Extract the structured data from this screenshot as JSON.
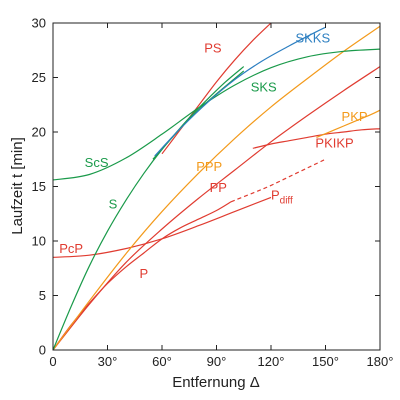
{
  "chart_data": {
    "type": "line",
    "title": "",
    "xlabel": "Entfernung Δ",
    "ylabel": "Laufzeit t [min]",
    "xlim": [
      0,
      180
    ],
    "ylim": [
      0,
      30
    ],
    "x_ticks": [
      "0",
      "30°",
      "60°",
      "90°",
      "120°",
      "150°",
      "180°"
    ],
    "x_tick_values": [
      0,
      30,
      60,
      90,
      120,
      150,
      180
    ],
    "y_ticks": [
      "0",
      "5",
      "10",
      "15",
      "20",
      "25",
      "30"
    ],
    "y_tick_values": [
      0,
      5,
      10,
      15,
      20,
      25,
      30
    ],
    "grid": false,
    "legend": "none",
    "colors": {
      "red": "#e03c31",
      "green": "#1a9a4a",
      "orange": "#f39a1b",
      "blue": "#2d7fc1"
    },
    "series": [
      {
        "name": "P",
        "color": "#e03c31",
        "x": [
          0,
          10,
          20,
          30,
          40,
          50,
          60,
          70,
          80,
          90,
          98
        ],
        "y": [
          0,
          2.3,
          4.3,
          6.1,
          7.6,
          8.9,
          10.2,
          11.2,
          12.0,
          12.8,
          13.6
        ]
      },
      {
        "name": "Pdiff",
        "color": "#e03c31",
        "dashed": true,
        "x": [
          98,
          110,
          120,
          130,
          140,
          150
        ],
        "y": [
          13.6,
          14.4,
          15.1,
          15.9,
          16.7,
          17.5
        ]
      },
      {
        "name": "PcP",
        "color": "#e03c31",
        "x": [
          0,
          20,
          40,
          60,
          80,
          100,
          120
        ],
        "y": [
          8.5,
          8.7,
          9.3,
          10.2,
          11.4,
          12.7,
          14.0
        ]
      },
      {
        "name": "PP",
        "color": "#e03c31",
        "x": [
          0,
          20,
          40,
          60,
          80,
          100,
          120,
          140,
          160,
          180
        ],
        "y": [
          0,
          4.2,
          8.0,
          11.1,
          13.9,
          16.5,
          19.1,
          21.5,
          23.8,
          26.0
        ]
      },
      {
        "name": "PKIKP",
        "color": "#e03c31",
        "x": [
          110,
          120,
          130,
          140,
          150,
          160,
          170,
          180
        ],
        "y": [
          18.5,
          18.9,
          19.2,
          19.5,
          19.8,
          20.0,
          20.2,
          20.3
        ]
      },
      {
        "name": "PS",
        "color": "#e03c31",
        "x": [
          60,
          70,
          80,
          90,
          100,
          110,
          120
        ],
        "y": [
          18.0,
          20.2,
          22.4,
          24.6,
          26.6,
          28.4,
          30.0
        ]
      },
      {
        "name": "PPP",
        "color": "#f39a1b",
        "x": [
          0,
          20,
          40,
          60,
          80,
          100,
          120,
          140,
          160,
          180
        ],
        "y": [
          0,
          4.5,
          8.8,
          12.7,
          16.2,
          19.4,
          22.3,
          24.9,
          27.4,
          29.7
        ]
      },
      {
        "name": "PKP",
        "color": "#f39a1b",
        "x": [
          145,
          155,
          165,
          175,
          180
        ],
        "y": [
          19.5,
          20.2,
          20.9,
          21.6,
          22.0
        ]
      },
      {
        "name": "S",
        "color": "#1a9a4a",
        "x": [
          0,
          10,
          20,
          30,
          40,
          50,
          60,
          70,
          80,
          90,
          100,
          105
        ],
        "y": [
          0,
          4.0,
          7.7,
          10.9,
          13.7,
          16.2,
          18.4,
          20.3,
          22.0,
          23.5,
          24.9,
          25.6
        ]
      },
      {
        "name": "ScS",
        "color": "#1a9a4a",
        "x": [
          0,
          20,
          40,
          60,
          80,
          100,
          120,
          140,
          160,
          180
        ],
        "y": [
          15.6,
          16.1,
          17.6,
          19.8,
          22.2,
          24.3,
          25.9,
          26.9,
          27.4,
          27.6
        ]
      },
      {
        "name": "SKS",
        "color": "#1a9a4a",
        "x": [
          55,
          65,
          75,
          85,
          95,
          105
        ],
        "y": [
          17.5,
          19.4,
          21.3,
          23.0,
          24.6,
          26.0
        ]
      },
      {
        "name": "SKKS",
        "color": "#2d7fc1",
        "x": [
          56,
          70,
          85,
          100,
          115,
          130,
          145,
          150
        ],
        "y": [
          17.8,
          20.3,
          22.7,
          24.8,
          26.5,
          27.9,
          29.2,
          29.6
        ]
      }
    ],
    "labels": [
      {
        "text": "PS",
        "x": 88,
        "y": 27.3,
        "color": "#e03c31"
      },
      {
        "text": "SKKS",
        "x": 143,
        "y": 28.2,
        "color": "#2d7fc1"
      },
      {
        "text": "SKS",
        "x": 116,
        "y": 23.7,
        "color": "#1a9a4a"
      },
      {
        "text": "ScS",
        "x": 24,
        "y": 16.8,
        "color": "#1a9a4a"
      },
      {
        "text": "PPP",
        "x": 86,
        "y": 16.4,
        "color": "#f39a1b"
      },
      {
        "text": "PKP",
        "x": 166,
        "y": 21.0,
        "color": "#f39a1b"
      },
      {
        "text": "PKIKP",
        "x": 155,
        "y": 18.6,
        "color": "#e03c31"
      },
      {
        "text": "S",
        "x": 33,
        "y": 13.0,
        "color": "#1a9a4a"
      },
      {
        "text": "PP",
        "x": 91,
        "y": 14.5,
        "color": "#e03c31"
      },
      {
        "text": "P",
        "x": 126,
        "y": 13.8,
        "color": "#e03c31",
        "subscript": "diff"
      },
      {
        "text": "PcP",
        "x": 10,
        "y": 8.9,
        "color": "#e03c31"
      },
      {
        "text": "P",
        "x": 50,
        "y": 6.6,
        "color": "#e03c31"
      }
    ]
  }
}
